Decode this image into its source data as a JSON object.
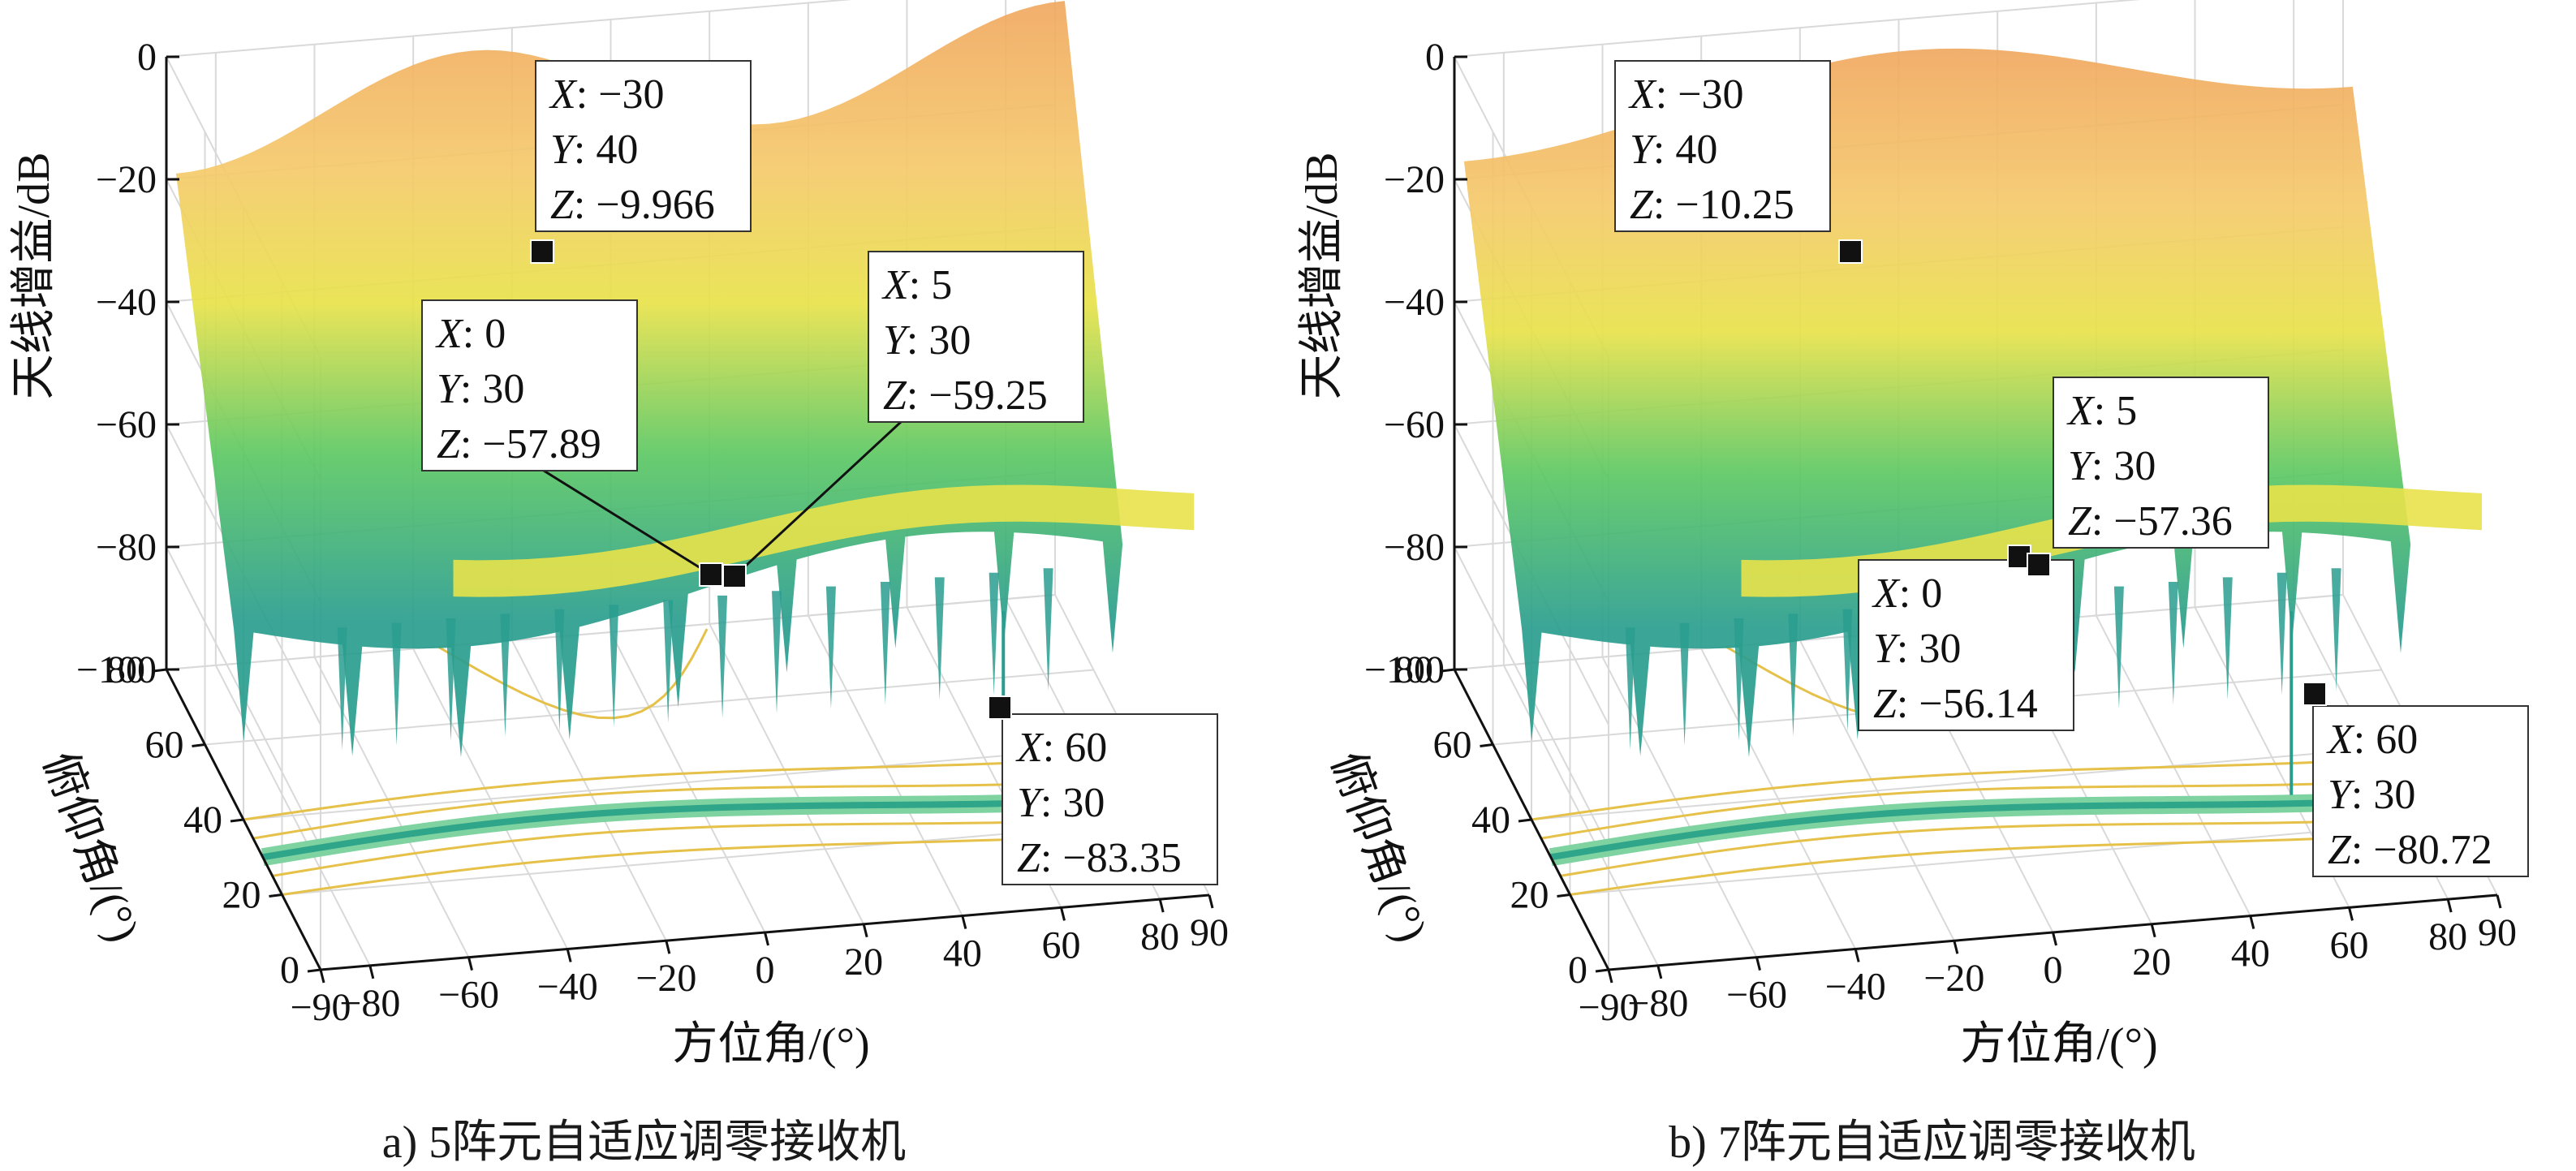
{
  "chart_data": [
    {
      "type": "surface3d",
      "caption": "a) 5阵元自适应调零接收机",
      "xlabel": "方位角/(°)",
      "ylabel": "俯仰角/(°)",
      "zlabel": "天线增益/dB",
      "xlim": [
        -90,
        90
      ],
      "ylim": [
        0,
        80
      ],
      "zlim": [
        -100,
        0
      ],
      "x_ticks": [
        "−90",
        "−80",
        "−60",
        "−40",
        "−20",
        "0",
        "20",
        "40",
        "60",
        "80",
        "90"
      ],
      "y_ticks": [
        "0",
        "20",
        "40",
        "60",
        "80"
      ],
      "z_ticks": [
        "0",
        "−20",
        "−40",
        "−60",
        "−80",
        "−100"
      ],
      "grid": true,
      "colormap": [
        "#440154",
        "#2a9d8f",
        "#5cc863",
        "#e8e24a",
        "#f5c96b",
        "#f0a860"
      ],
      "datatips": [
        {
          "x": -30,
          "y": 40,
          "z": -9.966,
          "lines": [
            "X: −30",
            "Y: 40",
            "Z: −9.966"
          ]
        },
        {
          "x": 0,
          "y": 30,
          "z": -57.89,
          "lines": [
            "X: 0",
            "Y: 30",
            "Z: −57.89"
          ]
        },
        {
          "x": 5,
          "y": 30,
          "z": -59.25,
          "lines": [
            "X: 5",
            "Y: 30",
            "Z: −59.25"
          ]
        },
        {
          "x": 60,
          "y": 30,
          "z": -83.35,
          "lines": [
            "X: 60",
            "Y: 30",
            "Z: −83.35"
          ]
        }
      ]
    },
    {
      "type": "surface3d",
      "caption": "b) 7阵元自适应调零接收机",
      "xlabel": "方位角/(°)",
      "ylabel": "俯仰角/(°)",
      "zlabel": "天线增益/dB",
      "xlim": [
        -90,
        90
      ],
      "ylim": [
        0,
        80
      ],
      "zlim": [
        -100,
        0
      ],
      "x_ticks": [
        "−90",
        "−80",
        "−60",
        "−40",
        "−20",
        "0",
        "20",
        "40",
        "60",
        "80",
        "90"
      ],
      "y_ticks": [
        "0",
        "20",
        "40",
        "60",
        "80"
      ],
      "z_ticks": [
        "0",
        "−20",
        "−40",
        "−60",
        "−80",
        "−100"
      ],
      "grid": true,
      "colormap": [
        "#440154",
        "#2a9d8f",
        "#5cc863",
        "#e8e24a",
        "#f5c96b",
        "#f0a860"
      ],
      "datatips": [
        {
          "x": -30,
          "y": 40,
          "z": -10.25,
          "lines": [
            "X: −30",
            "Y: 40",
            "Z: −10.25"
          ]
        },
        {
          "x": 0,
          "y": 30,
          "z": -56.14,
          "lines": [
            "X: 0",
            "Y: 30",
            "Z: −56.14"
          ]
        },
        {
          "x": 5,
          "y": 30,
          "z": -57.36,
          "lines": [
            "X: 5",
            "Y: 30",
            "Z: −57.36"
          ]
        },
        {
          "x": 60,
          "y": 30,
          "z": -80.72,
          "lines": [
            "X: 60",
            "Y: 30",
            "Z: −80.72"
          ]
        }
      ]
    }
  ]
}
